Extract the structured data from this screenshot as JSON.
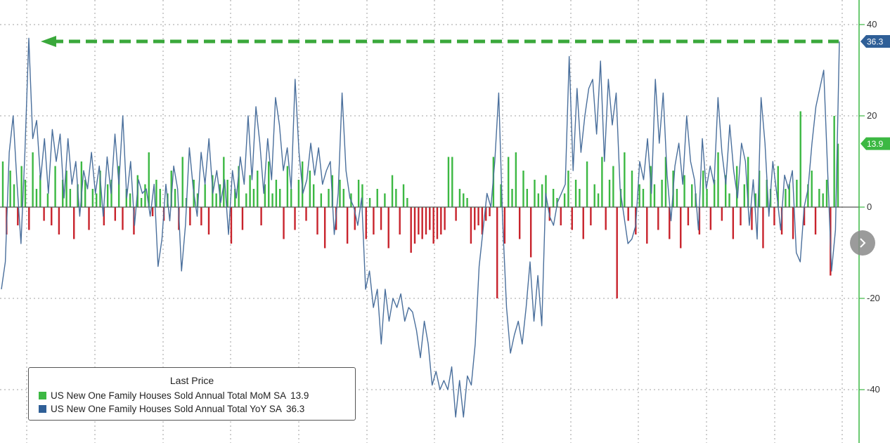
{
  "chart_data": {
    "type": "bar+line",
    "title": "",
    "y_axis": {
      "side": "right",
      "ticks": [
        40,
        20,
        0,
        -20,
        -40
      ],
      "tick_labels": [
        "40",
        "20",
        "0",
        "-20",
        "-40"
      ],
      "ylim": [
        -51,
        45
      ],
      "grid": true
    },
    "series": [
      {
        "name": "US New One Family Houses Sold Annual Total MoM SA",
        "type": "bar",
        "color_positive": "#3cb843",
        "color_negative": "#c8232c",
        "last_value": 13.9,
        "values": [
          10,
          -6,
          8,
          5,
          -4,
          9,
          6,
          -5,
          12,
          4,
          7,
          -3,
          3,
          -4,
          9,
          -6,
          6,
          8,
          4,
          -7,
          5,
          10,
          6,
          -5,
          4,
          3,
          8,
          -4,
          5,
          6,
          -3,
          9,
          -5,
          4,
          3,
          -6,
          7,
          2,
          5,
          12,
          -2,
          6,
          4,
          -3,
          3,
          8,
          4,
          -5,
          11,
          2,
          -4,
          6,
          3,
          -4,
          5,
          -6,
          7,
          3,
          5,
          11,
          6,
          -8,
          4,
          9,
          -5,
          3,
          7,
          4,
          8,
          -4,
          5,
          10,
          3,
          6,
          4,
          -7,
          9,
          4,
          -5,
          6,
          10,
          -3,
          8,
          5,
          -6,
          3,
          -9,
          4,
          7,
          -5,
          6,
          4,
          -8,
          3,
          -5,
          6,
          5,
          -7,
          2,
          -6,
          4,
          -5,
          3,
          -9,
          7,
          4,
          -6,
          5,
          2,
          -10,
          -8,
          -6,
          -7,
          -6,
          -5,
          -8,
          -7,
          -6,
          -5,
          11,
          11,
          -3,
          4,
          3,
          2,
          -8,
          -5,
          -4,
          -6,
          -3,
          -2,
          11,
          -20,
          5,
          -8,
          11,
          4,
          12,
          -7,
          8,
          4,
          -11,
          6,
          3,
          5,
          7,
          -3,
          4,
          2,
          -4,
          3,
          8,
          -5,
          6,
          4,
          -7,
          10,
          -4,
          5,
          3,
          11,
          -5,
          6,
          9,
          -20,
          4,
          12,
          -3,
          8,
          -6,
          5,
          4,
          -8,
          9,
          5,
          -5,
          6,
          11,
          -7,
          8,
          4,
          -9,
          7,
          -4,
          5,
          3,
          -6,
          8,
          4,
          -5,
          6,
          12,
          -3,
          7,
          3,
          -7,
          9,
          -4,
          5,
          11,
          -5,
          3,
          8,
          -9,
          6,
          4,
          -4,
          9,
          -6,
          4,
          5,
          -7,
          6,
          21,
          -4,
          5,
          8,
          -6,
          4,
          3,
          6,
          -15,
          20,
          13.9
        ]
      },
      {
        "name": "US New One Family Houses Sold Annual Total YoY SA",
        "type": "line",
        "color": "#4a6f9c",
        "last_value": 36.3,
        "values": [
          -18,
          -12,
          12,
          20,
          5,
          -8,
          12,
          37,
          15,
          19,
          6,
          15,
          3,
          17,
          10,
          16,
          2,
          15,
          5,
          10,
          -2,
          8,
          4,
          12,
          3,
          9,
          -2,
          11,
          3,
          16,
          5,
          20,
          2,
          10,
          -4,
          6,
          3,
          4,
          -2,
          5,
          -13,
          -7,
          5,
          -3,
          9,
          4,
          -14,
          -4,
          13,
          4,
          -2,
          12,
          5,
          15,
          3,
          8,
          1,
          6,
          -6,
          8,
          2,
          11,
          5,
          20,
          6,
          22,
          14,
          3,
          15,
          6,
          24,
          18,
          8,
          13,
          4,
          28,
          12,
          3,
          6,
          14,
          7,
          13,
          5,
          8,
          10,
          -6,
          3,
          25,
          8,
          2,
          0,
          -4,
          2,
          -18,
          -14,
          -22,
          -18,
          -30,
          -18,
          -25,
          -20,
          -22,
          -19,
          -25,
          -22,
          -23,
          -27,
          -33,
          -25,
          -30,
          -39,
          -36,
          -40,
          -38,
          -40,
          -35,
          -46,
          -38,
          -46,
          -37,
          -39,
          -30,
          -13,
          -5,
          3,
          0,
          10,
          25,
          -3,
          -22,
          -32,
          -28,
          -25,
          -30,
          -22,
          -12,
          -25,
          -15,
          -26,
          3,
          -2,
          -4,
          1,
          3,
          5,
          33,
          8,
          26,
          12,
          20,
          26,
          28,
          16,
          32,
          10,
          28,
          18,
          25,
          4,
          -2,
          -8,
          -7,
          -4,
          10,
          6,
          15,
          3,
          28,
          14,
          25,
          7,
          -3,
          9,
          14,
          5,
          20,
          10,
          6,
          -5,
          15,
          4,
          9,
          5,
          24,
          12,
          5,
          18,
          8,
          2,
          14,
          10,
          -4,
          6,
          -7,
          24,
          14,
          -2,
          10,
          3,
          -5,
          7,
          4,
          8,
          -10,
          -12,
          0,
          4,
          14,
          22,
          26,
          30,
          8,
          -14,
          -5,
          36.3
        ]
      }
    ],
    "reference_line": {
      "value": 36.3,
      "color": "#3aa83b",
      "style": "dashed",
      "arrow": "left"
    },
    "legend": {
      "title": "Last Price",
      "placement": "bottom-left",
      "entries": [
        {
          "label": "US New One Family Houses Sold Annual Total MoM SA",
          "value": "13.9",
          "color": "#3cb843"
        },
        {
          "label": "US New One Family Houses Sold Annual Total YoY SA",
          "value": "36.3",
          "color": "#2f5f97"
        }
      ]
    },
    "badges": [
      {
        "text": "36.3",
        "value": 36.3,
        "color": "#2f5f97"
      },
      {
        "text": "13.9",
        "value": 13.9,
        "color": "#3cb843"
      }
    ]
  },
  "ui": {
    "next_icon": "chevron-right-icon"
  }
}
